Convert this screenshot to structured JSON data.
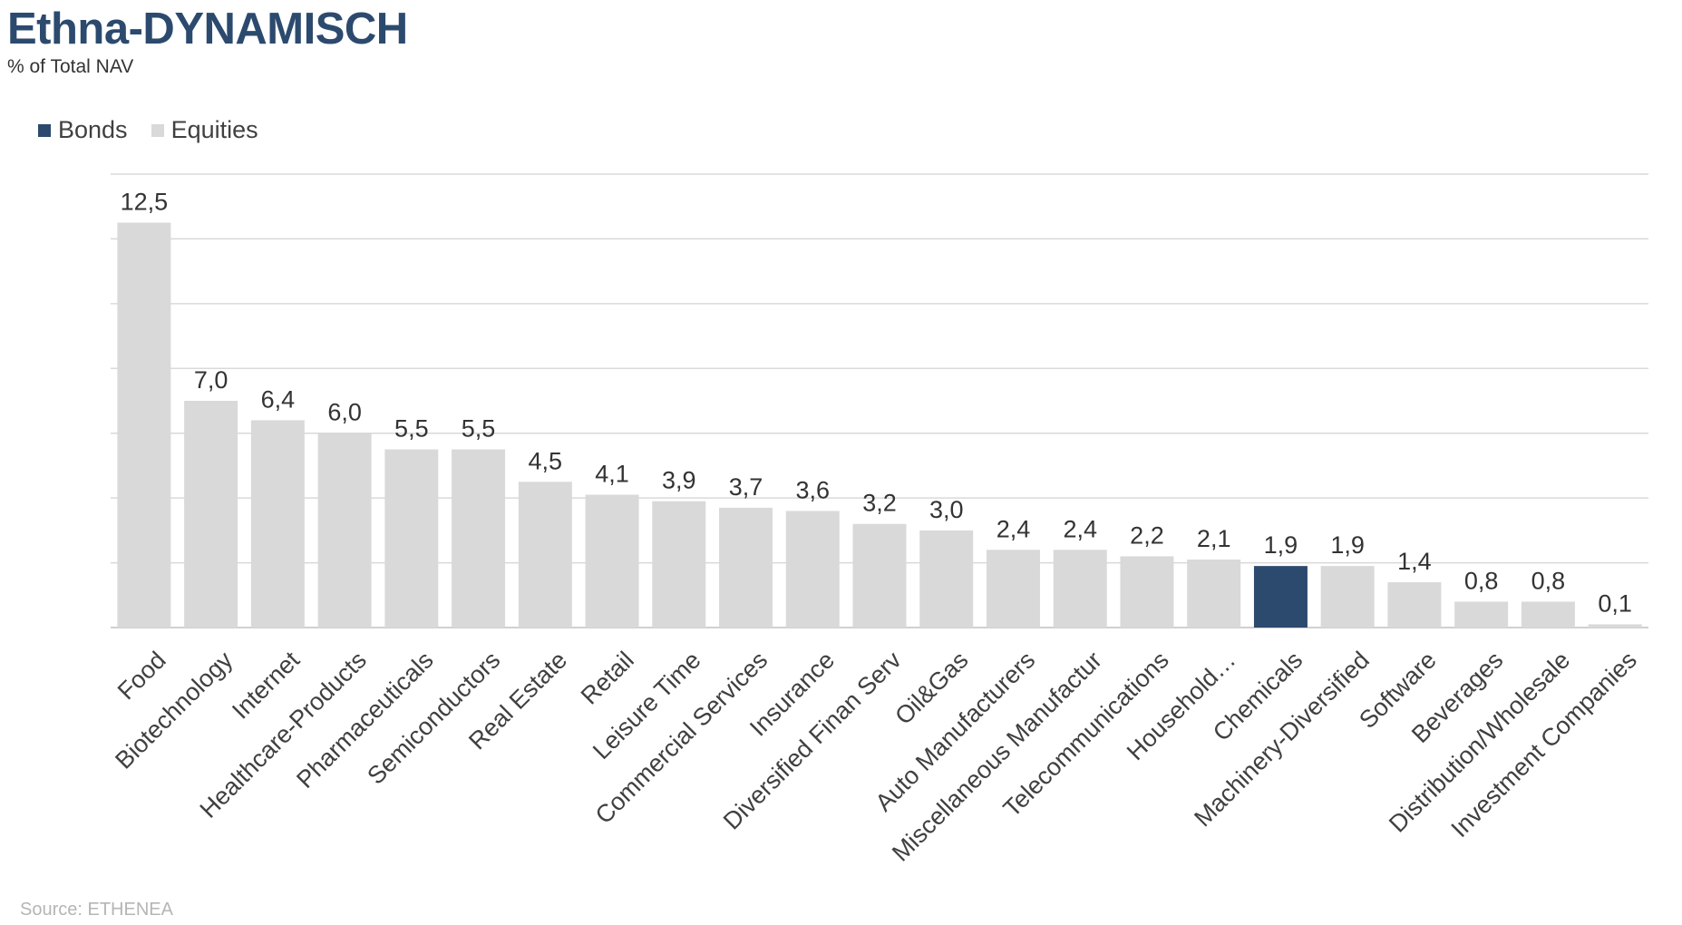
{
  "header": {
    "title": "Ethna-DYNAMISCH",
    "subtitle": "% of Total NAV"
  },
  "legend": {
    "items": [
      {
        "label": "Bonds",
        "color": "#2c4a6e"
      },
      {
        "label": "Equities",
        "color": "#d9d9d9"
      }
    ]
  },
  "footer": {
    "source": "Source: ETHENEA"
  },
  "chart_data": {
    "type": "bar",
    "categories": [
      "Food",
      "Biotechnology",
      "Internet",
      "Healthcare-Products",
      "Pharmaceuticals",
      "Semiconductors",
      "Real Estate",
      "Retail",
      "Leisure Time",
      "Commercial Services",
      "Insurance",
      "Diversified Finan Serv",
      "Oil&Gas",
      "Auto Manufacturers",
      "Miscellaneous Manufactur",
      "Telecommunications",
      "Household…",
      "Chemicals",
      "Machinery-Diversified",
      "Software",
      "Beverages",
      "Distribution/Wholesale",
      "Investment Companies"
    ],
    "values": [
      12.5,
      7.0,
      6.4,
      6.0,
      5.5,
      5.5,
      4.5,
      4.1,
      3.9,
      3.7,
      3.6,
      3.2,
      3.0,
      2.4,
      2.4,
      2.2,
      2.1,
      1.9,
      1.9,
      1.4,
      0.8,
      0.8,
      0.1
    ],
    "value_labels": [
      "12,5",
      "7,0",
      "6,4",
      "6,0",
      "5,5",
      "5,5",
      "4,5",
      "4,1",
      "3,9",
      "3,7",
      "3,6",
      "3,2",
      "3,0",
      "2,4",
      "2,4",
      "2,2",
      "2,1",
      "1,9",
      "1,9",
      "1,4",
      "0,8",
      "0,8",
      "0,1"
    ],
    "series_type": [
      "Equities",
      "Equities",
      "Equities",
      "Equities",
      "Equities",
      "Equities",
      "Equities",
      "Equities",
      "Equities",
      "Equities",
      "Equities",
      "Equities",
      "Equities",
      "Equities",
      "Equities",
      "Equities",
      "Equities",
      "Bonds",
      "Equities",
      "Equities",
      "Equities",
      "Equities",
      "Equities"
    ],
    "title": "Ethna-DYNAMISCH",
    "ylabel": "",
    "xlabel": "",
    "ylim": [
      0,
      14
    ],
    "grid": true,
    "legend_position": "top-left"
  }
}
